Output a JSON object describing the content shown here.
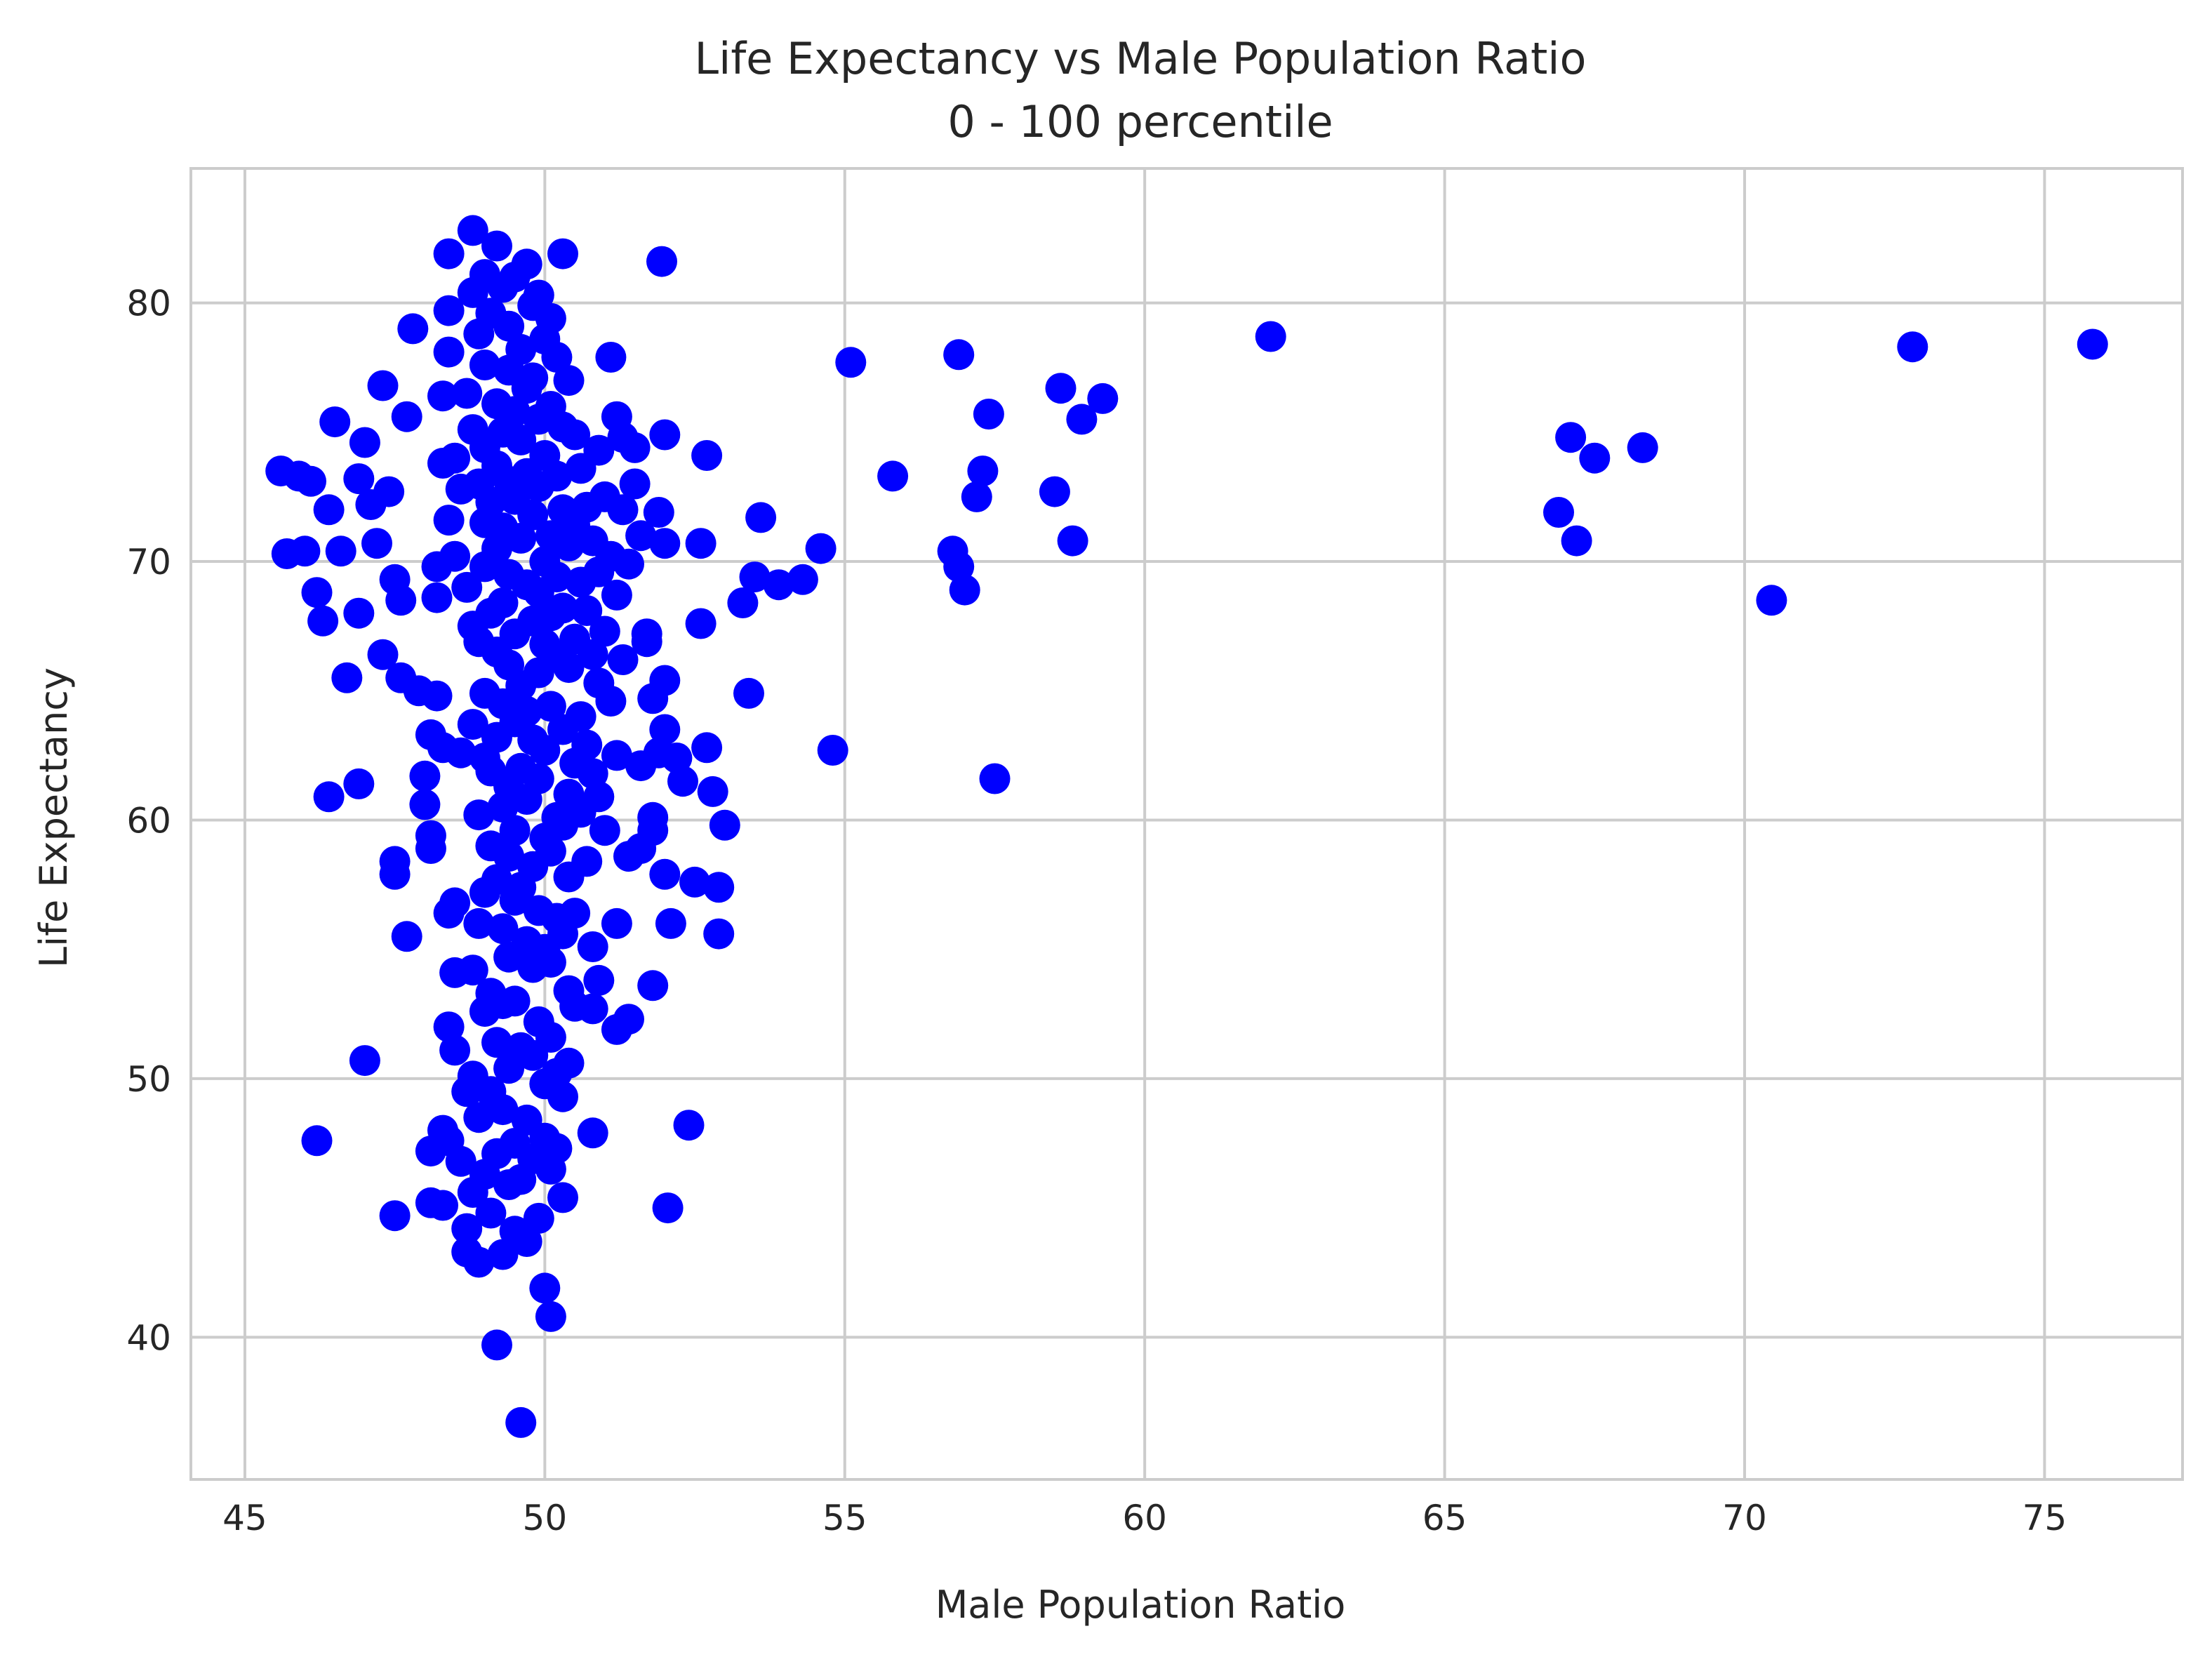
{
  "chart_data": {
    "type": "scatter",
    "title": "Life Expectancy vs Male Population Ratio",
    "subtitle": "0 - 100 percentile",
    "xlabel": "Male Population Ratio",
    "ylabel": "Life Expectancy",
    "xlim": [
      44.1,
      77.3
    ],
    "ylim": [
      34.5,
      85.2
    ],
    "xticks": [
      45,
      50,
      55,
      60,
      65,
      70,
      75
    ],
    "yticks": [
      40,
      50,
      60,
      70,
      80
    ],
    "grid": true,
    "marker_color": "#0000ff",
    "points": [
      [
        45.6,
        73.5
      ],
      [
        45.7,
        70.3
      ],
      [
        45.9,
        73.3
      ],
      [
        46.1,
        73.1
      ],
      [
        46.0,
        70.4
      ],
      [
        46.2,
        68.8
      ],
      [
        46.2,
        47.6
      ],
      [
        46.3,
        67.7
      ],
      [
        46.4,
        72.0
      ],
      [
        46.5,
        75.4
      ],
      [
        46.4,
        60.9
      ],
      [
        46.6,
        70.4
      ],
      [
        46.7,
        65.5
      ],
      [
        46.9,
        73.2
      ],
      [
        46.9,
        68.0
      ],
      [
        46.9,
        61.4
      ],
      [
        47.0,
        50.7
      ],
      [
        47.0,
        74.6
      ],
      [
        47.1,
        72.2
      ],
      [
        47.2,
        70.7
      ],
      [
        47.3,
        76.8
      ],
      [
        47.3,
        66.4
      ],
      [
        47.4,
        72.7
      ],
      [
        47.5,
        69.3
      ],
      [
        47.5,
        58.4
      ],
      [
        47.5,
        57.9
      ],
      [
        47.5,
        44.7
      ],
      [
        47.6,
        65.5
      ],
      [
        47.6,
        68.5
      ],
      [
        47.7,
        75.6
      ],
      [
        47.7,
        55.5
      ],
      [
        47.8,
        79.0
      ],
      [
        47.9,
        65.0
      ],
      [
        48.0,
        61.7
      ],
      [
        48.0,
        60.6
      ],
      [
        48.1,
        63.3
      ],
      [
        48.1,
        59.4
      ],
      [
        48.1,
        58.9
      ],
      [
        48.1,
        47.2
      ],
      [
        48.1,
        45.2
      ],
      [
        48.2,
        69.8
      ],
      [
        48.2,
        68.6
      ],
      [
        48.2,
        64.8
      ],
      [
        48.3,
        76.4
      ],
      [
        48.3,
        73.8
      ],
      [
        48.3,
        62.8
      ],
      [
        48.3,
        48.0
      ],
      [
        48.3,
        45.1
      ],
      [
        48.4,
        81.9
      ],
      [
        48.4,
        79.7
      ],
      [
        48.4,
        78.1
      ],
      [
        48.4,
        71.6
      ],
      [
        48.4,
        56.4
      ],
      [
        48.4,
        52.0
      ],
      [
        48.4,
        47.6
      ],
      [
        48.5,
        74.0
      ],
      [
        48.5,
        70.2
      ],
      [
        48.5,
        56.8
      ],
      [
        48.5,
        54.1
      ],
      [
        48.5,
        51.1
      ],
      [
        48.6,
        72.8
      ],
      [
        48.6,
        62.6
      ],
      [
        48.6,
        46.8
      ],
      [
        48.7,
        76.5
      ],
      [
        48.7,
        69.0
      ],
      [
        48.7,
        49.5
      ],
      [
        48.7,
        44.2
      ],
      [
        48.7,
        43.3
      ],
      [
        48.8,
        82.8
      ],
      [
        48.8,
        80.4
      ],
      [
        48.8,
        75.1
      ],
      [
        48.8,
        67.5
      ],
      [
        48.8,
        63.7
      ],
      [
        48.8,
        54.2
      ],
      [
        48.8,
        50.1
      ],
      [
        48.8,
        45.6
      ],
      [
        48.9,
        78.8
      ],
      [
        48.9,
        73.0
      ],
      [
        48.9,
        66.9
      ],
      [
        48.9,
        60.2
      ],
      [
        48.9,
        56.0
      ],
      [
        48.9,
        48.5
      ],
      [
        48.9,
        42.9
      ],
      [
        49.0,
        81.1
      ],
      [
        49.0,
        77.6
      ],
      [
        49.0,
        74.4
      ],
      [
        49.0,
        71.5
      ],
      [
        49.0,
        69.8
      ],
      [
        49.0,
        64.9
      ],
      [
        49.0,
        62.4
      ],
      [
        49.0,
        57.2
      ],
      [
        49.0,
        52.6
      ],
      [
        49.0,
        46.3
      ],
      [
        49.1,
        79.6
      ],
      [
        49.1,
        72.3
      ],
      [
        49.1,
        68.0
      ],
      [
        49.1,
        61.9
      ],
      [
        49.1,
        59.0
      ],
      [
        49.1,
        53.3
      ],
      [
        49.1,
        49.5
      ],
      [
        49.1,
        44.8
      ],
      [
        49.2,
        82.2
      ],
      [
        49.2,
        76.1
      ],
      [
        49.2,
        73.7
      ],
      [
        49.2,
        70.5
      ],
      [
        49.2,
        66.5
      ],
      [
        49.2,
        63.2
      ],
      [
        49.2,
        57.7
      ],
      [
        49.2,
        51.4
      ],
      [
        49.2,
        47.1
      ],
      [
        49.2,
        39.7
      ],
      [
        49.3,
        80.6
      ],
      [
        49.3,
        75.0
      ],
      [
        49.3,
        71.3
      ],
      [
        49.3,
        68.4
      ],
      [
        49.3,
        64.5
      ],
      [
        49.3,
        60.5
      ],
      [
        49.3,
        55.8
      ],
      [
        49.3,
        52.9
      ],
      [
        49.3,
        48.8
      ],
      [
        49.3,
        43.2
      ],
      [
        49.4,
        79.1
      ],
      [
        49.4,
        77.4
      ],
      [
        49.4,
        73.1
      ],
      [
        49.4,
        69.5
      ],
      [
        49.4,
        66.0
      ],
      [
        49.4,
        61.3
      ],
      [
        49.4,
        58.6
      ],
      [
        49.4,
        54.7
      ],
      [
        49.4,
        50.4
      ],
      [
        49.4,
        45.9
      ],
      [
        49.5,
        81.0
      ],
      [
        49.5,
        75.8
      ],
      [
        49.5,
        72.4
      ],
      [
        49.5,
        67.2
      ],
      [
        49.5,
        63.8
      ],
      [
        49.5,
        59.6
      ],
      [
        49.5,
        56.9
      ],
      [
        49.5,
        53.0
      ],
      [
        49.5,
        47.5
      ],
      [
        49.5,
        44.1
      ],
      [
        49.6,
        78.2
      ],
      [
        49.6,
        74.7
      ],
      [
        49.6,
        70.9
      ],
      [
        49.6,
        65.2
      ],
      [
        49.6,
        62.0
      ],
      [
        49.6,
        57.4
      ],
      [
        49.6,
        51.2
      ],
      [
        49.6,
        46.1
      ],
      [
        49.6,
        36.7
      ],
      [
        49.7,
        81.5
      ],
      [
        49.7,
        76.7
      ],
      [
        49.7,
        73.4
      ],
      [
        49.7,
        69.1
      ],
      [
        49.7,
        64.2
      ],
      [
        49.7,
        60.8
      ],
      [
        49.7,
        55.3
      ],
      [
        49.7,
        48.4
      ],
      [
        49.7,
        43.7
      ],
      [
        49.8,
        79.9
      ],
      [
        49.8,
        77.1
      ],
      [
        49.8,
        71.8
      ],
      [
        49.8,
        67.7
      ],
      [
        49.8,
        63.1
      ],
      [
        49.8,
        58.2
      ],
      [
        49.8,
        54.3
      ],
      [
        49.8,
        50.9
      ],
      [
        49.8,
        46.9
      ],
      [
        49.9,
        80.3
      ],
      [
        49.9,
        75.5
      ],
      [
        49.9,
        72.9
      ],
      [
        49.9,
        68.8
      ],
      [
        49.9,
        65.7
      ],
      [
        49.9,
        61.6
      ],
      [
        49.9,
        56.5
      ],
      [
        49.9,
        52.2
      ],
      [
        49.9,
        44.6
      ],
      [
        50.0,
        78.6
      ],
      [
        50.0,
        74.1
      ],
      [
        50.0,
        70.0
      ],
      [
        50.0,
        66.8
      ],
      [
        50.0,
        62.7
      ],
      [
        50.0,
        59.3
      ],
      [
        50.0,
        55.0
      ],
      [
        50.0,
        49.8
      ],
      [
        50.0,
        47.7
      ],
      [
        50.0,
        41.9
      ],
      [
        50.1,
        79.4
      ],
      [
        50.1,
        76.0
      ],
      [
        50.1,
        71.0
      ],
      [
        50.1,
        67.9
      ],
      [
        50.1,
        64.4
      ],
      [
        50.1,
        58.8
      ],
      [
        50.1,
        54.5
      ],
      [
        50.1,
        51.6
      ],
      [
        50.1,
        46.5
      ],
      [
        50.1,
        40.8
      ],
      [
        50.2,
        77.9
      ],
      [
        50.2,
        73.3
      ],
      [
        50.2,
        69.4
      ],
      [
        50.2,
        66.3
      ],
      [
        50.2,
        60.1
      ],
      [
        50.2,
        56.2
      ],
      [
        50.2,
        50.2
      ],
      [
        50.2,
        47.3
      ],
      [
        50.3,
        81.9
      ],
      [
        50.3,
        75.2
      ],
      [
        50.3,
        72.0
      ],
      [
        50.3,
        68.2
      ],
      [
        50.3,
        63.5
      ],
      [
        50.3,
        59.8
      ],
      [
        50.3,
        55.6
      ],
      [
        50.3,
        49.3
      ],
      [
        50.3,
        45.4
      ],
      [
        50.4,
        77.0
      ],
      [
        50.4,
        70.6
      ],
      [
        50.4,
        65.9
      ],
      [
        50.4,
        61.0
      ],
      [
        50.4,
        57.8
      ],
      [
        50.4,
        53.4
      ],
      [
        50.4,
        50.6
      ],
      [
        50.5,
        74.9
      ],
      [
        50.5,
        71.4
      ],
      [
        50.5,
        67.0
      ],
      [
        50.5,
        62.2
      ],
      [
        50.5,
        56.4
      ],
      [
        50.5,
        52.8
      ],
      [
        50.6,
        73.6
      ],
      [
        50.6,
        69.2
      ],
      [
        50.6,
        64.0
      ],
      [
        50.6,
        60.3
      ],
      [
        50.7,
        72.1
      ],
      [
        50.7,
        68.1
      ],
      [
        50.7,
        62.9
      ],
      [
        50.7,
        58.4
      ],
      [
        50.8,
        70.8
      ],
      [
        50.8,
        66.4
      ],
      [
        50.8,
        61.8
      ],
      [
        50.8,
        55.1
      ],
      [
        50.8,
        52.7
      ],
      [
        50.8,
        47.9
      ],
      [
        50.9,
        74.3
      ],
      [
        50.9,
        69.6
      ],
      [
        50.9,
        65.3
      ],
      [
        50.9,
        60.9
      ],
      [
        50.9,
        53.8
      ],
      [
        51.0,
        72.5
      ],
      [
        51.0,
        67.3
      ],
      [
        51.0,
        59.6
      ],
      [
        51.1,
        77.9
      ],
      [
        51.1,
        70.2
      ],
      [
        51.1,
        64.6
      ],
      [
        51.2,
        75.6
      ],
      [
        51.2,
        68.7
      ],
      [
        51.2,
        62.5
      ],
      [
        51.2,
        56.0
      ],
      [
        51.2,
        51.9
      ],
      [
        51.3,
        74.8
      ],
      [
        51.3,
        72.0
      ],
      [
        51.3,
        66.2
      ],
      [
        51.4,
        69.9
      ],
      [
        51.4,
        58.6
      ],
      [
        51.4,
        52.3
      ],
      [
        51.5,
        74.4
      ],
      [
        51.5,
        73.0
      ],
      [
        51.6,
        71.0
      ],
      [
        51.6,
        62.1
      ],
      [
        51.6,
        58.9
      ],
      [
        51.7,
        67.2
      ],
      [
        51.7,
        66.9
      ],
      [
        51.8,
        64.7
      ],
      [
        51.8,
        60.1
      ],
      [
        51.8,
        59.6
      ],
      [
        51.8,
        53.6
      ],
      [
        51.9,
        71.9
      ],
      [
        51.9,
        62.6
      ],
      [
        51.95,
        81.6
      ],
      [
        52.0,
        74.9
      ],
      [
        52.0,
        70.7
      ],
      [
        52.0,
        65.4
      ],
      [
        52.0,
        63.5
      ],
      [
        52.0,
        57.9
      ],
      [
        52.05,
        45.0
      ],
      [
        52.1,
        56.0
      ],
      [
        52.2,
        62.4
      ],
      [
        52.3,
        61.5
      ],
      [
        52.4,
        48.2
      ],
      [
        52.5,
        57.6
      ],
      [
        52.6,
        67.6
      ],
      [
        52.6,
        70.7
      ],
      [
        52.7,
        62.8
      ],
      [
        52.7,
        74.1
      ],
      [
        52.8,
        61.1
      ],
      [
        52.9,
        57.4
      ],
      [
        52.9,
        55.6
      ],
      [
        53.0,
        59.8
      ],
      [
        53.3,
        68.4
      ],
      [
        53.4,
        64.9
      ],
      [
        53.5,
        69.4
      ],
      [
        53.6,
        71.7
      ],
      [
        53.9,
        69.1
      ],
      [
        54.3,
        69.3
      ],
      [
        54.6,
        70.5
      ],
      [
        54.8,
        62.7
      ],
      [
        55.1,
        77.7
      ],
      [
        55.8,
        73.3
      ],
      [
        56.8,
        70.4
      ],
      [
        56.9,
        69.8
      ],
      [
        56.9,
        78.0
      ],
      [
        57.0,
        68.9
      ],
      [
        57.2,
        72.5
      ],
      [
        57.3,
        73.5
      ],
      [
        57.4,
        75.7
      ],
      [
        57.5,
        61.6
      ],
      [
        58.5,
        72.7
      ],
      [
        58.6,
        76.7
      ],
      [
        58.8,
        70.8
      ],
      [
        58.95,
        75.5
      ],
      [
        59.3,
        76.3
      ],
      [
        62.1,
        78.7
      ],
      [
        66.9,
        71.9
      ],
      [
        67.1,
        74.8
      ],
      [
        67.2,
        70.8
      ],
      [
        67.5,
        74.0
      ],
      [
        68.3,
        74.4
      ],
      [
        70.45,
        68.5
      ],
      [
        72.8,
        78.3
      ],
      [
        75.8,
        78.4
      ]
    ]
  }
}
